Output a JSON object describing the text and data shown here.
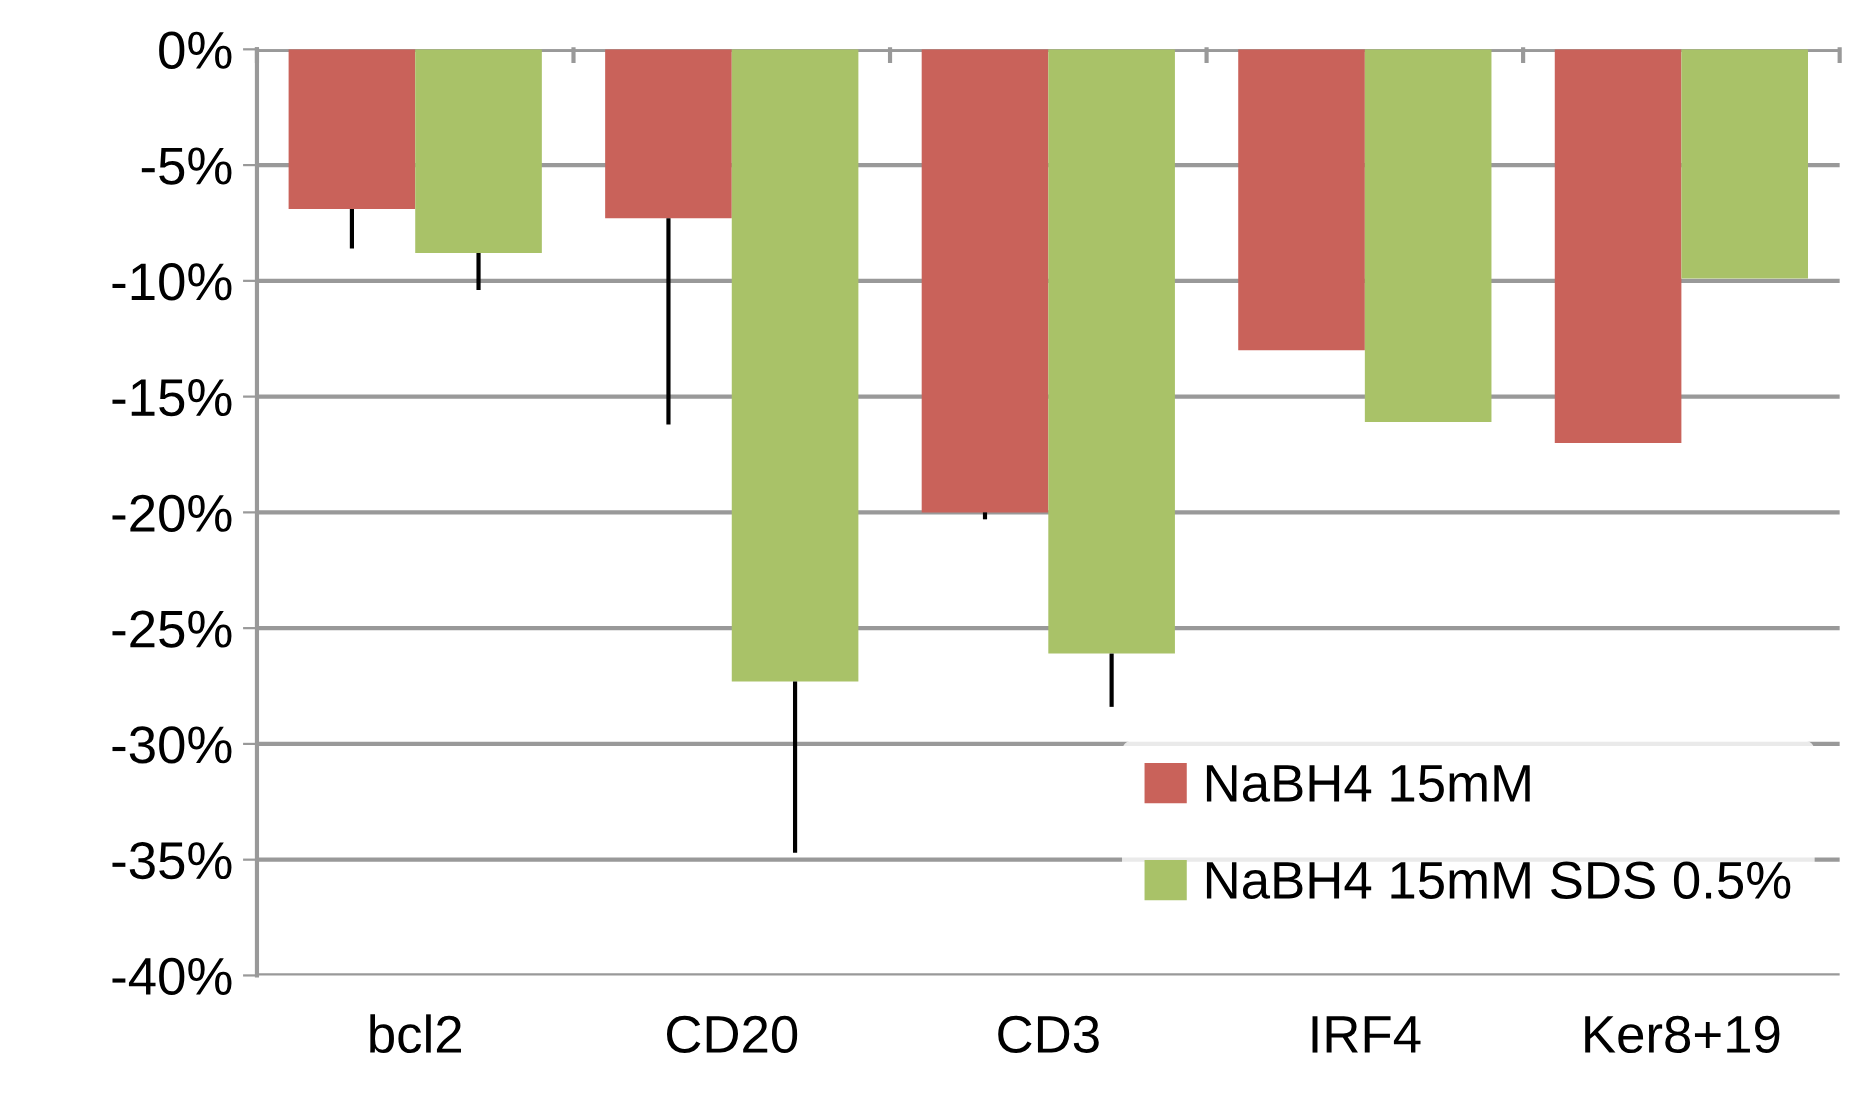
{
  "chart_data": {
    "type": "bar",
    "categories": [
      "bcl2",
      "CD20",
      "CD3",
      "IRF4",
      "Ker8+19"
    ],
    "series": [
      {
        "name": "NaBH4 15mM",
        "color": "#c9625a",
        "values": [
          -6.9,
          -7.3,
          -20.0,
          -13.0,
          -17.0
        ],
        "errors": [
          [
            -8.6,
            -6.9
          ],
          [
            -16.2,
            -7.3
          ],
          [
            -20.3,
            -20.0
          ],
          null,
          null
        ]
      },
      {
        "name": "NaBH4 15mM SDS 0.5%",
        "color": "#a9c268",
        "values": [
          -8.8,
          -27.3,
          -26.1,
          -16.1,
          -9.9
        ],
        "errors": [
          [
            -10.4,
            -8.8
          ],
          [
            -34.7,
            -27.3
          ],
          [
            -28.4,
            -26.1
          ],
          null,
          null
        ]
      }
    ],
    "ylim": [
      -40,
      0
    ],
    "yticks": [
      {
        "value": 0,
        "label": "0%"
      },
      {
        "value": -5,
        "label": "-5%"
      },
      {
        "value": -10,
        "label": "-10%"
      },
      {
        "value": -15,
        "label": "-15%"
      },
      {
        "value": -20,
        "label": "-20%"
      },
      {
        "value": -25,
        "label": "-25%"
      },
      {
        "value": -30,
        "label": "-30%"
      },
      {
        "value": -35,
        "label": "-35%"
      },
      {
        "value": -40,
        "label": "-40%"
      }
    ],
    "grid": "y",
    "legend": "bottom right"
  }
}
